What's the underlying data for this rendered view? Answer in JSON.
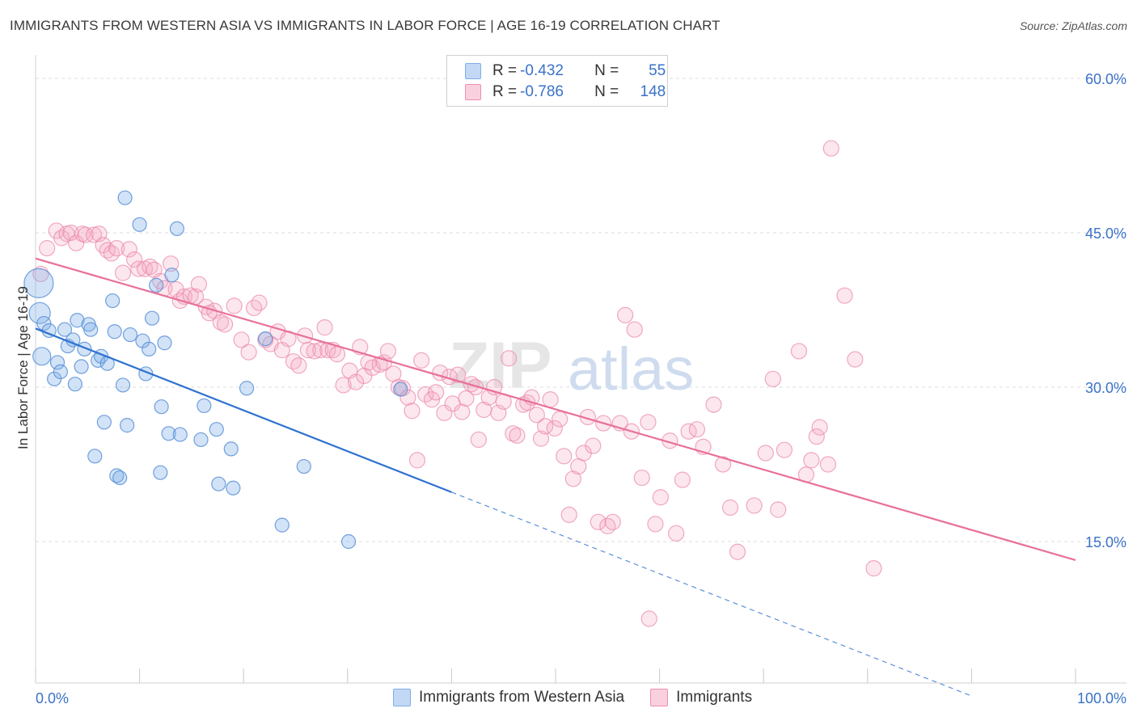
{
  "header": {
    "title": "IMMIGRANTS FROM WESTERN ASIA VS IMMIGRANTS IN LABOR FORCE | AGE 16-19 CORRELATION CHART",
    "source": "Source: ZipAtlas.com"
  },
  "watermark": {
    "text_zip": "ZIP",
    "text_atlas": "atlas"
  },
  "legend": {
    "rows": [
      {
        "r_label": "R =",
        "r_value": "-0.432",
        "n_label": "N =",
        "n_value": "55",
        "color": "#a9c8f0"
      },
      {
        "r_label": "R =",
        "r_value": "-0.786",
        "n_label": "N =",
        "n_value": "148",
        "color": "#f5b8cb"
      }
    ]
  },
  "bottom_legend": {
    "items": [
      {
        "label": "Immigrants from Western Asia",
        "color": "#a9c8f0"
      },
      {
        "label": "Immigrants",
        "color": "#f5b8cb"
      }
    ]
  },
  "chart_data": {
    "type": "scatter",
    "title": "IMMIGRANTS FROM WESTERN ASIA VS IMMIGRANTS IN LABOR FORCE | AGE 16-19 CORRELATION CHART",
    "xlabel": "",
    "ylabel": "In Labor Force | Age 16-19",
    "xlim": [
      0,
      100
    ],
    "ylim": [
      0,
      60
    ],
    "x_tick_labels": [
      "0.0%",
      "100.0%"
    ],
    "y_ticks": [
      15,
      30,
      45,
      60
    ],
    "y_tick_labels": [
      "15.0%",
      "30.0%",
      "45.0%",
      "60.0%"
    ],
    "grid": true,
    "legend_position": "top-center",
    "series": [
      {
        "name": "Immigrants from Western Asia",
        "color": "#7eaee8",
        "points": [
          [
            0.3,
            40.1
          ],
          [
            0.4,
            37.2
          ],
          [
            0.6,
            33.0
          ],
          [
            0.8,
            36.2
          ],
          [
            1.3,
            35.5
          ],
          [
            1.8,
            30.8
          ],
          [
            2.1,
            32.4
          ],
          [
            2.4,
            31.5
          ],
          [
            2.8,
            35.6
          ],
          [
            3.1,
            34.0
          ],
          [
            3.6,
            34.6
          ],
          [
            3.8,
            30.3
          ],
          [
            4.0,
            36.5
          ],
          [
            4.4,
            32.0
          ],
          [
            4.7,
            33.7
          ],
          [
            5.1,
            36.1
          ],
          [
            5.3,
            35.6
          ],
          [
            5.7,
            23.3
          ],
          [
            6.0,
            32.6
          ],
          [
            6.3,
            33.0
          ],
          [
            6.6,
            26.6
          ],
          [
            6.9,
            32.3
          ],
          [
            7.4,
            38.4
          ],
          [
            7.6,
            35.4
          ],
          [
            7.8,
            21.4
          ],
          [
            8.1,
            21.2
          ],
          [
            8.4,
            30.2
          ],
          [
            8.6,
            48.4
          ],
          [
            8.8,
            26.3
          ],
          [
            9.1,
            35.1
          ],
          [
            10.0,
            45.8
          ],
          [
            10.3,
            34.5
          ],
          [
            10.6,
            31.3
          ],
          [
            10.9,
            33.7
          ],
          [
            11.2,
            36.7
          ],
          [
            11.6,
            39.9
          ],
          [
            12.0,
            21.7
          ],
          [
            12.1,
            28.1
          ],
          [
            12.4,
            34.3
          ],
          [
            12.8,
            25.5
          ],
          [
            13.1,
            40.9
          ],
          [
            13.6,
            45.4
          ],
          [
            13.9,
            25.4
          ],
          [
            15.9,
            24.9
          ],
          [
            16.2,
            28.2
          ],
          [
            17.4,
            25.9
          ],
          [
            17.6,
            20.6
          ],
          [
            18.8,
            24.0
          ],
          [
            19.0,
            20.2
          ],
          [
            20.3,
            29.9
          ],
          [
            22.1,
            34.7
          ],
          [
            23.7,
            16.6
          ],
          [
            25.8,
            22.3
          ],
          [
            30.1,
            15.0
          ],
          [
            35.1,
            29.8
          ]
        ],
        "trend": {
          "x": [
            0,
            40
          ],
          "y": [
            35.7,
            19.8
          ]
        },
        "trend_dashed": {
          "x": [
            40,
            90
          ],
          "y": [
            19.8,
            0.0
          ]
        }
      },
      {
        "name": "Immigrants",
        "color": "#f08fb0",
        "points": [
          [
            0.5,
            41.0
          ],
          [
            1.1,
            43.5
          ],
          [
            2.0,
            45.2
          ],
          [
            2.5,
            44.5
          ],
          [
            3.0,
            44.9
          ],
          [
            3.4,
            45.0
          ],
          [
            3.9,
            44.0
          ],
          [
            4.5,
            44.9
          ],
          [
            4.8,
            44.8
          ],
          [
            5.6,
            44.8
          ],
          [
            6.1,
            44.9
          ],
          [
            6.5,
            43.8
          ],
          [
            6.9,
            43.3
          ],
          [
            7.3,
            43.0
          ],
          [
            7.8,
            43.5
          ],
          [
            8.4,
            41.1
          ],
          [
            9.0,
            43.4
          ],
          [
            9.5,
            42.4
          ],
          [
            9.9,
            41.5
          ],
          [
            10.5,
            41.5
          ],
          [
            11.0,
            41.7
          ],
          [
            11.4,
            41.4
          ],
          [
            12.0,
            40.3
          ],
          [
            12.4,
            39.6
          ],
          [
            13.0,
            42.0
          ],
          [
            13.5,
            39.5
          ],
          [
            13.9,
            38.4
          ],
          [
            14.3,
            38.8
          ],
          [
            14.9,
            38.9
          ],
          [
            15.4,
            38.8
          ],
          [
            15.7,
            40.0
          ],
          [
            16.4,
            37.8
          ],
          [
            16.7,
            37.2
          ],
          [
            17.2,
            37.4
          ],
          [
            17.8,
            36.3
          ],
          [
            18.2,
            36.1
          ],
          [
            19.1,
            37.9
          ],
          [
            19.8,
            34.6
          ],
          [
            20.5,
            33.4
          ],
          [
            21.0,
            37.7
          ],
          [
            21.5,
            38.2
          ],
          [
            22.1,
            34.6
          ],
          [
            22.6,
            34.2
          ],
          [
            23.3,
            35.4
          ],
          [
            23.7,
            33.6
          ],
          [
            24.3,
            34.7
          ],
          [
            24.8,
            32.5
          ],
          [
            25.3,
            32.1
          ],
          [
            25.9,
            35.0
          ],
          [
            26.2,
            33.6
          ],
          [
            26.8,
            33.5
          ],
          [
            27.4,
            33.6
          ],
          [
            27.8,
            35.8
          ],
          [
            28.1,
            33.6
          ],
          [
            28.6,
            33.6
          ],
          [
            29.0,
            33.2
          ],
          [
            29.6,
            30.2
          ],
          [
            30.2,
            31.6
          ],
          [
            30.8,
            30.5
          ],
          [
            31.2,
            33.9
          ],
          [
            31.6,
            31.1
          ],
          [
            32.0,
            32.4
          ],
          [
            32.4,
            31.9
          ],
          [
            33.1,
            32.2
          ],
          [
            33.5,
            32.4
          ],
          [
            33.9,
            33.5
          ],
          [
            34.4,
            31.3
          ],
          [
            34.9,
            30.0
          ],
          [
            35.3,
            29.9
          ],
          [
            35.8,
            29.0
          ],
          [
            36.2,
            27.7
          ],
          [
            36.7,
            22.9
          ],
          [
            37.1,
            32.6
          ],
          [
            37.5,
            29.3
          ],
          [
            38.1,
            28.8
          ],
          [
            38.5,
            29.5
          ],
          [
            38.9,
            31.4
          ],
          [
            39.3,
            27.5
          ],
          [
            39.8,
            31.0
          ],
          [
            40.1,
            28.4
          ],
          [
            40.6,
            31.2
          ],
          [
            41.0,
            27.6
          ],
          [
            41.4,
            28.9
          ],
          [
            41.9,
            30.3
          ],
          [
            42.3,
            30.0
          ],
          [
            42.6,
            24.9
          ],
          [
            43.1,
            27.8
          ],
          [
            43.6,
            29.0
          ],
          [
            44.1,
            30.0
          ],
          [
            44.5,
            27.5
          ],
          [
            45.0,
            28.6
          ],
          [
            45.5,
            32.8
          ],
          [
            45.9,
            25.5
          ],
          [
            46.3,
            25.3
          ],
          [
            46.9,
            28.3
          ],
          [
            47.3,
            28.5
          ],
          [
            47.7,
            29.0
          ],
          [
            48.2,
            27.3
          ],
          [
            48.6,
            25.0
          ],
          [
            49.0,
            26.2
          ],
          [
            49.5,
            28.8
          ],
          [
            49.9,
            26.0
          ],
          [
            50.4,
            26.9
          ],
          [
            50.8,
            23.3
          ],
          [
            51.3,
            17.6
          ],
          [
            51.7,
            21.1
          ],
          [
            52.2,
            22.3
          ],
          [
            52.7,
            23.6
          ],
          [
            53.1,
            27.1
          ],
          [
            53.6,
            24.3
          ],
          [
            54.1,
            16.9
          ],
          [
            54.6,
            26.5
          ],
          [
            55.0,
            16.5
          ],
          [
            55.5,
            16.9
          ],
          [
            56.2,
            26.5
          ],
          [
            56.7,
            37.0
          ],
          [
            57.3,
            25.7
          ],
          [
            57.6,
            35.6
          ],
          [
            58.3,
            21.2
          ],
          [
            58.9,
            26.6
          ],
          [
            59.6,
            16.7
          ],
          [
            60.1,
            19.3
          ],
          [
            61.0,
            24.8
          ],
          [
            61.6,
            15.8
          ],
          [
            62.2,
            21.0
          ],
          [
            62.8,
            25.7
          ],
          [
            63.6,
            25.9
          ],
          [
            64.2,
            24.2
          ],
          [
            65.2,
            28.3
          ],
          [
            66.1,
            22.5
          ],
          [
            66.8,
            18.3
          ],
          [
            67.5,
            14.0
          ],
          [
            69.1,
            18.5
          ],
          [
            70.2,
            23.6
          ],
          [
            70.9,
            30.8
          ],
          [
            71.4,
            18.1
          ],
          [
            72.0,
            23.9
          ],
          [
            73.4,
            33.5
          ],
          [
            74.1,
            21.5
          ],
          [
            74.6,
            22.9
          ],
          [
            75.1,
            25.2
          ],
          [
            75.4,
            26.1
          ],
          [
            76.2,
            22.5
          ],
          [
            76.5,
            53.2
          ],
          [
            77.8,
            38.9
          ],
          [
            78.8,
            32.7
          ],
          [
            80.6,
            12.4
          ],
          [
            59.0,
            7.5
          ]
        ],
        "trend": {
          "x": [
            0,
            100
          ],
          "y": [
            42.5,
            13.2
          ]
        }
      }
    ]
  }
}
